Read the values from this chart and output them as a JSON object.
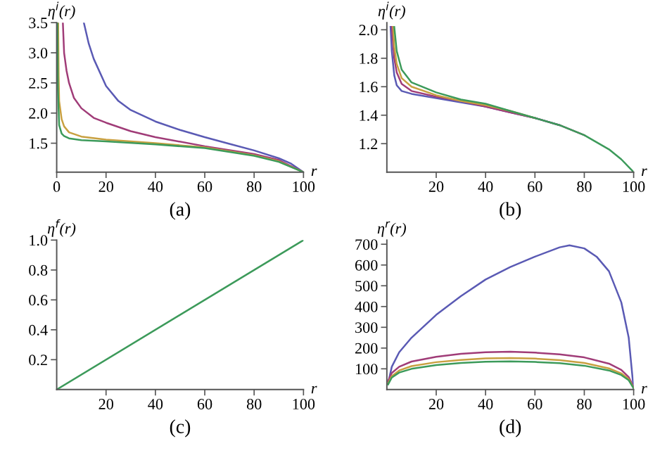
{
  "chart_data": [
    {
      "type": "line",
      "xlabel": "r",
      "ylabel": "η$^{i}$(r)",
      "annotations": [
        "(a)"
      ],
      "xlim": [
        0,
        100
      ],
      "ylim": [
        1.02,
        3.5
      ],
      "xticks": [
        0,
        20,
        40,
        60,
        80,
        100
      ],
      "yticks": [
        1.5,
        {
          "value": 2,
          "label": "2.0"
        },
        2.5,
        {
          "value": 3,
          "label": "3.0"
        },
        3.5
      ],
      "grid": false,
      "legend": false,
      "series": [
        {
          "color": "#5a5ab4",
          "x": [
            11,
            13,
            15,
            20,
            25,
            30,
            40,
            50,
            60,
            70,
            80,
            90,
            95,
            100
          ],
          "values": [
            3.5,
            3.15,
            2.9,
            2.45,
            2.2,
            2.05,
            1.86,
            1.72,
            1.6,
            1.49,
            1.38,
            1.25,
            1.16,
            1.02
          ]
        },
        {
          "color": "#a03c78",
          "x": [
            2.5,
            3,
            4,
            5,
            7,
            10,
            15,
            20,
            30,
            40,
            60,
            80,
            90,
            100
          ],
          "values": [
            3.5,
            3.0,
            2.7,
            2.5,
            2.25,
            2.08,
            1.92,
            1.84,
            1.7,
            1.6,
            1.45,
            1.32,
            1.22,
            1.02
          ]
        },
        {
          "color": "#c8a040",
          "x": [
            0.6,
            0.8,
            1,
            2,
            3,
            5,
            10,
            20,
            40,
            60,
            80,
            90,
            100
          ],
          "values": [
            3.5,
            2.6,
            2.2,
            1.9,
            1.78,
            1.68,
            1.61,
            1.56,
            1.5,
            1.43,
            1.3,
            1.2,
            1.02
          ]
        },
        {
          "color": "#3c9a5a",
          "x": [
            0.3,
            0.5,
            1,
            2,
            3,
            5,
            10,
            20,
            40,
            60,
            80,
            90,
            100
          ],
          "values": [
            3.5,
            2.4,
            1.8,
            1.66,
            1.62,
            1.58,
            1.55,
            1.53,
            1.48,
            1.42,
            1.29,
            1.19,
            1.02
          ]
        }
      ]
    },
    {
      "type": "line",
      "xlabel": "r",
      "ylabel": "η$^{i}$(r)",
      "annotations": [
        "(b)"
      ],
      "xlim": [
        0,
        100
      ],
      "ylim": [
        1.0,
        2.05
      ],
      "xticks": [
        20,
        40,
        60,
        80,
        100
      ],
      "yticks": [
        1.2,
        1.4,
        1.6,
        1.8,
        {
          "value": 2,
          "label": "2.0"
        }
      ],
      "grid": false,
      "legend": false,
      "series": [
        {
          "color": "#5a5ab4",
          "x": [
            1.5,
            2,
            3,
            4,
            6,
            10,
            20,
            30,
            40,
            50,
            60,
            70
          ],
          "values": [
            2.02,
            1.85,
            1.68,
            1.61,
            1.57,
            1.55,
            1.52,
            1.49,
            1.46,
            1.42,
            1.38,
            1.33
          ]
        },
        {
          "color": "#a03c78",
          "x": [
            2,
            3,
            4,
            6,
            10,
            20,
            30,
            40,
            50,
            60,
            70,
            80
          ],
          "values": [
            2.02,
            1.8,
            1.7,
            1.62,
            1.57,
            1.53,
            1.5,
            1.46,
            1.42,
            1.38,
            1.33,
            1.26
          ]
        },
        {
          "color": "#c8a040",
          "x": [
            2.5,
            3,
            4,
            6,
            10,
            20,
            30,
            40,
            50,
            60
          ],
          "values": [
            2.02,
            1.88,
            1.76,
            1.66,
            1.6,
            1.54,
            1.5,
            1.47,
            1.43,
            1.38
          ]
        },
        {
          "color": "#3c9a5a",
          "x": [
            3,
            4,
            6,
            10,
            20,
            30,
            40,
            50,
            60,
            70,
            80,
            90,
            95,
            100
          ],
          "values": [
            2.02,
            1.85,
            1.72,
            1.63,
            1.56,
            1.51,
            1.48,
            1.43,
            1.38,
            1.33,
            1.26,
            1.16,
            1.09,
            1.0
          ]
        }
      ]
    },
    {
      "type": "line",
      "xlabel": "r",
      "ylabel": "η$^{f}$(r)",
      "annotations": [
        "(c)"
      ],
      "xlim": [
        0,
        100
      ],
      "ylim": [
        0,
        1.0
      ],
      "xticks": [
        20,
        40,
        60,
        80,
        100
      ],
      "yticks": [
        0.2,
        0.4,
        0.6,
        0.8,
        {
          "value": 1,
          "label": "1.0"
        }
      ],
      "grid": false,
      "legend": false,
      "series": [
        {
          "color": "#3c9a5a",
          "x": [
            0,
            100
          ],
          "values": [
            0,
            1.0
          ]
        }
      ]
    },
    {
      "type": "line",
      "xlabel": "r",
      "ylabel": "η$^{r}$(r)",
      "annotations": [
        "(d)"
      ],
      "xlim": [
        0,
        100
      ],
      "ylim": [
        0,
        720
      ],
      "xticks": [
        20,
        40,
        60,
        80,
        100
      ],
      "yticks": [
        100,
        200,
        300,
        400,
        500,
        600,
        700
      ],
      "grid": false,
      "legend": false,
      "series": [
        {
          "color": "#5a5ab4",
          "x": [
            0.5,
            2,
            5,
            10,
            20,
            30,
            40,
            50,
            60,
            70,
            74,
            80,
            85,
            90,
            95,
            98,
            100
          ],
          "values": [
            30,
            110,
            180,
            250,
            360,
            450,
            530,
            590,
            640,
            685,
            695,
            680,
            640,
            570,
            420,
            250,
            0
          ]
        },
        {
          "color": "#a03c78",
          "x": [
            0.5,
            2,
            5,
            10,
            20,
            30,
            40,
            50,
            60,
            70,
            80,
            90,
            95,
            98,
            100
          ],
          "values": [
            40,
            80,
            110,
            135,
            158,
            172,
            180,
            182,
            178,
            170,
            155,
            125,
            95,
            60,
            10
          ]
        },
        {
          "color": "#c8a040",
          "x": [
            0.5,
            2,
            5,
            10,
            20,
            30,
            40,
            50,
            60,
            70,
            80,
            90,
            95,
            98,
            100
          ],
          "values": [
            30,
            65,
            92,
            113,
            132,
            143,
            150,
            152,
            149,
            142,
            128,
            102,
            78,
            50,
            8
          ]
        },
        {
          "color": "#3c9a5a",
          "x": [
            0.5,
            2,
            5,
            10,
            20,
            30,
            40,
            50,
            60,
            70,
            80,
            90,
            95,
            98,
            100
          ],
          "values": [
            25,
            58,
            82,
            100,
            118,
            128,
            134,
            136,
            133,
            127,
            115,
            92,
            70,
            45,
            6
          ]
        }
      ]
    }
  ]
}
